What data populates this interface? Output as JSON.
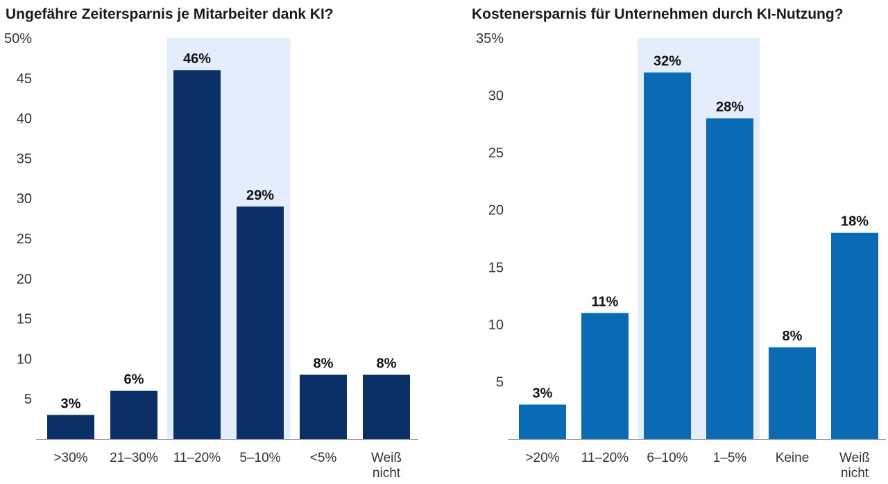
{
  "chart_data": [
    {
      "type": "bar",
      "title": "Ungefähre Zeitersparnis je Mitarbeiter dank KI?",
      "categories": [
        ">30%",
        "21–30%",
        "11–20%",
        "5–10%",
        "<5%",
        "Weiß nicht"
      ],
      "values": [
        3,
        6,
        46,
        29,
        8,
        8
      ],
      "data_labels": [
        "3%",
        "6%",
        "46%",
        "29%",
        "8%",
        "8%"
      ],
      "ylim": [
        0,
        50
      ],
      "yticks": [
        "5",
        "10",
        "15",
        "20",
        "25",
        "30",
        "35",
        "40",
        "45",
        "50%"
      ],
      "highlight_categories": [
        "11–20%",
        "5–10%"
      ],
      "bar_color": "#0b3068",
      "highlight_color": "#e3edfb",
      "grid": false
    },
    {
      "type": "bar",
      "title": "Kostenersparnis für Unternehmen durch KI-Nutzung?",
      "categories": [
        ">20%",
        "11–20%",
        "6–10%",
        "1–5%",
        "Keine",
        "Weiß nicht"
      ],
      "values": [
        3,
        11,
        32,
        28,
        8,
        18
      ],
      "data_labels": [
        "3%",
        "11%",
        "32%",
        "28%",
        "8%",
        "18%"
      ],
      "ylim": [
        0,
        35
      ],
      "yticks": [
        "5",
        "10",
        "15",
        "20",
        "25",
        "30",
        "35%"
      ],
      "highlight_categories": [
        "6–10%",
        "1–5%"
      ],
      "bar_color": "#0a6ab3",
      "highlight_color": "#e3edfb",
      "grid": false
    }
  ]
}
